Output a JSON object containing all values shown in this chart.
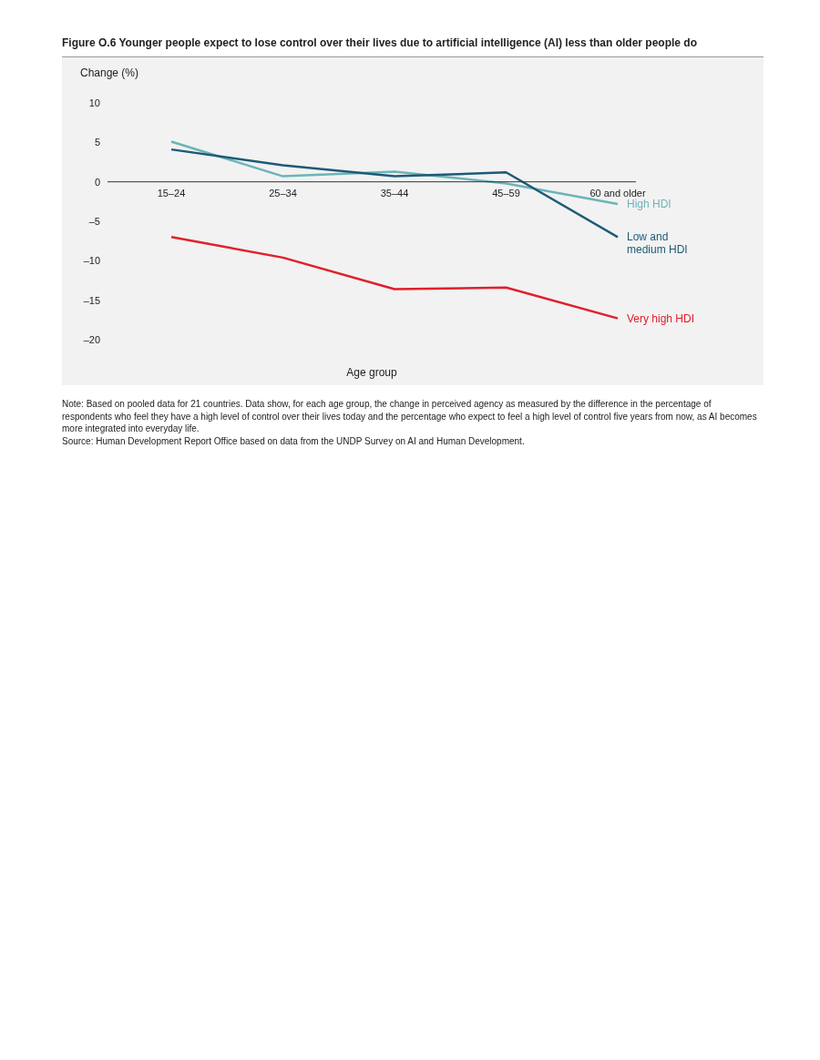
{
  "chart_data": {
    "type": "line",
    "title": "Figure O.6 Younger people expect to lose control over their lives due to artificial intelligence (AI) less than older people do",
    "ylabel": "Change (%)",
    "xlabel": "Age group",
    "categories": [
      "15–24",
      "25–34",
      "35–44",
      "45–59",
      "60 and older"
    ],
    "series": [
      {
        "name": "High HDI",
        "color": "#6cb4b8",
        "values": [
          5.1,
          0.7,
          1.3,
          -0.2,
          -2.8
        ]
      },
      {
        "name": "Low and medium HDI",
        "color": "#1d5a78",
        "values": [
          4.1,
          2.1,
          0.7,
          1.2,
          -7.0
        ]
      },
      {
        "name": "Very high HDI",
        "color": "#e0202a",
        "values": [
          -7.0,
          -9.6,
          -13.6,
          -13.4,
          -17.3
        ]
      }
    ],
    "ylim": [
      -20,
      10
    ],
    "yticks": [
      {
        "value": -20,
        "label": "–20"
      },
      {
        "value": -15,
        "label": "–15"
      },
      {
        "value": -10,
        "label": "–10"
      },
      {
        "value": -5,
        "label": "–5"
      },
      0,
      5,
      10
    ],
    "grid": false,
    "legend": false,
    "marker": "none",
    "line_style": "solid",
    "annotations": [
      "Note: Based on pooled data for 21 countries. Data show, for each age group, the change in perceived agency as measured by the difference in the percentage of respondents who feel they have a high level of control over their lives today and the percentage who expect to feel a high level of control five years from now, as AI becomes more integrated into everyday life.",
      "Source: Human Development Report Office based on data from the UNDP Survey on AI and Human Development."
    ]
  }
}
